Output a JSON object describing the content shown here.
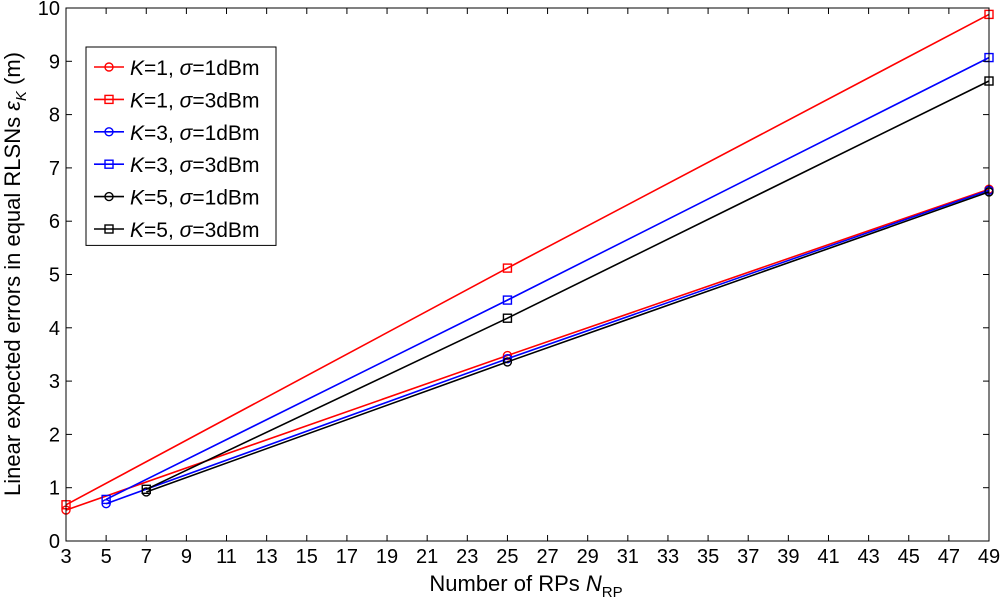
{
  "chart_data": {
    "type": "line",
    "xlabel": "Number of RPs",
    "xlabel_var": "N",
    "xlabel_sub": "RP",
    "ylabel": "Linear expected errors in equal RLSNs",
    "ylabel_var": "ε",
    "ylabel_sub": "K",
    "ylabel_unit": "(m)",
    "xlim": [
      3,
      49
    ],
    "ylim": [
      0,
      10
    ],
    "xticks": [
      3,
      5,
      7,
      9,
      11,
      13,
      15,
      17,
      19,
      21,
      23,
      25,
      27,
      29,
      31,
      33,
      35,
      37,
      39,
      41,
      43,
      45,
      47,
      49
    ],
    "yticks": [
      0,
      1,
      2,
      3,
      4,
      5,
      6,
      7,
      8,
      9,
      10
    ],
    "grid": false,
    "legend_position": "top-left",
    "series": [
      {
        "name_k": "K",
        "name_mid": "=1, ",
        "name_s": "σ",
        "name_end": "=1dBm",
        "color": "#ff0000",
        "marker": "circle",
        "x": [
          3,
          25,
          49
        ],
        "y": [
          0.58,
          3.48,
          6.6
        ]
      },
      {
        "name_k": "K",
        "name_mid": "=1, ",
        "name_s": "σ",
        "name_end": "=3dBm",
        "color": "#ff0000",
        "marker": "square",
        "x": [
          3,
          25,
          49
        ],
        "y": [
          0.68,
          5.12,
          9.88
        ]
      },
      {
        "name_k": "K",
        "name_mid": "=3, ",
        "name_s": "σ",
        "name_end": "=1dBm",
        "color": "#0000ff",
        "marker": "circle",
        "x": [
          5,
          25,
          49
        ],
        "y": [
          0.7,
          3.42,
          6.58
        ]
      },
      {
        "name_k": "K",
        "name_mid": "=3, ",
        "name_s": "σ",
        "name_end": "=3dBm",
        "color": "#0000ff",
        "marker": "square",
        "x": [
          5,
          25,
          49
        ],
        "y": [
          0.78,
          4.52,
          9.07
        ]
      },
      {
        "name_k": "K",
        "name_mid": "=5, ",
        "name_s": "σ",
        "name_end": "=1dBm",
        "color": "#000000",
        "marker": "circle",
        "x": [
          7,
          25,
          49
        ],
        "y": [
          0.92,
          3.36,
          6.55
        ]
      },
      {
        "name_k": "K",
        "name_mid": "=5, ",
        "name_s": "σ",
        "name_end": "=3dBm",
        "color": "#000000",
        "marker": "square",
        "x": [
          7,
          25,
          49
        ],
        "y": [
          0.97,
          4.18,
          8.63
        ]
      }
    ]
  }
}
